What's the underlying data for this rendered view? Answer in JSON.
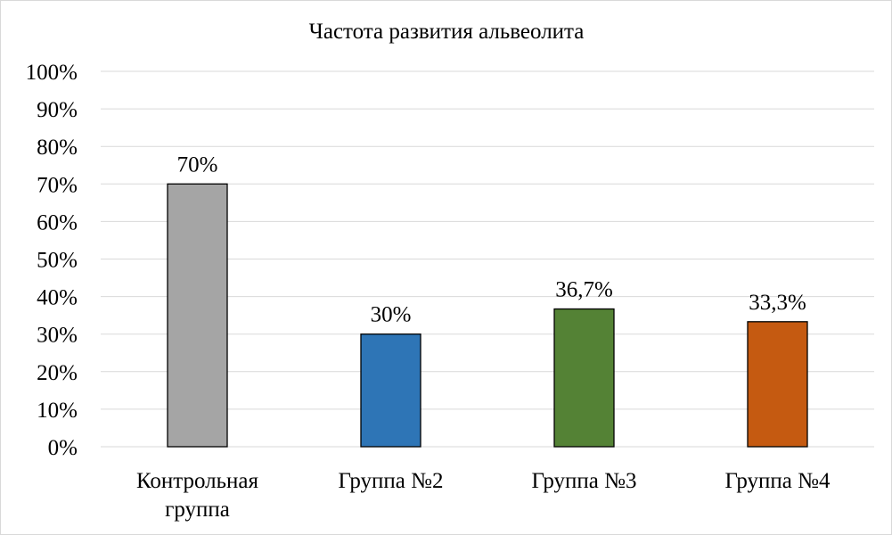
{
  "chart_data": {
    "type": "bar",
    "title": "Частота развития альвеолита",
    "categories": [
      [
        "Контрольная",
        "группа"
      ],
      [
        "Группа №2"
      ],
      [
        "Группа №3"
      ],
      [
        "Группа №4"
      ]
    ],
    "values": [
      70,
      30,
      36.7,
      33.3
    ],
    "data_labels": [
      "70%",
      "30%",
      "36,7%",
      "33,3%"
    ],
    "colors": [
      "#a5a5a5",
      "#2e75b6",
      "#548235",
      "#c55a11"
    ],
    "ylim": [
      0,
      100
    ],
    "yticks": [
      0,
      10,
      20,
      30,
      40,
      50,
      60,
      70,
      80,
      90,
      100
    ],
    "ytick_labels": [
      "0%",
      "10%",
      "20%",
      "30%",
      "40%",
      "50%",
      "60%",
      "70%",
      "80%",
      "90%",
      "100%"
    ],
    "xlabel": "",
    "ylabel": "",
    "grid": true,
    "legend": "none"
  }
}
